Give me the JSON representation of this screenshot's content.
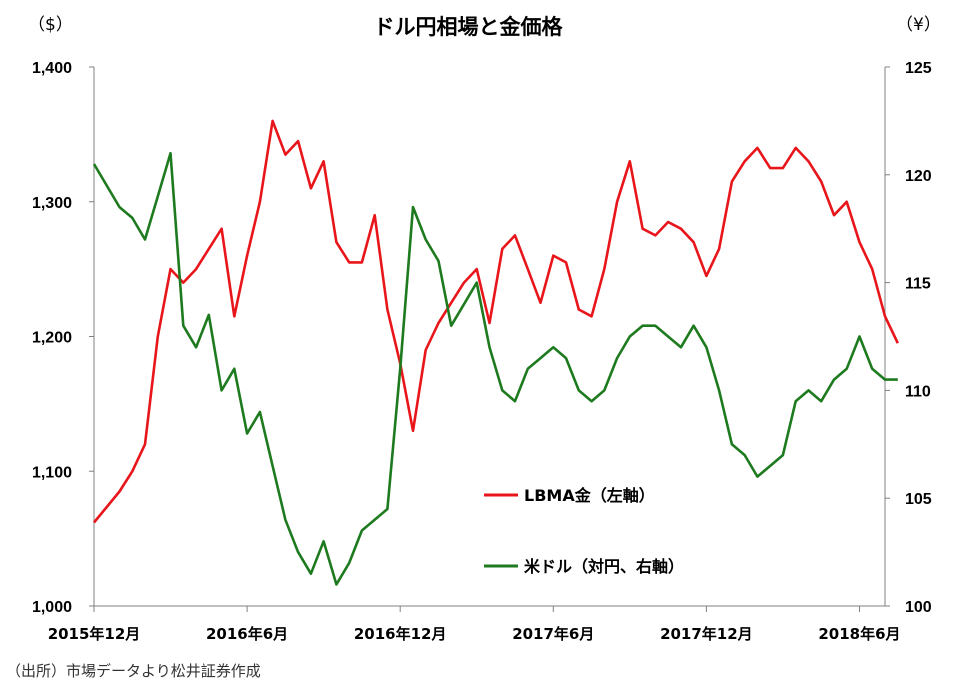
{
  "chart_data": {
    "type": "line",
    "title": "ドル円相場と金価格",
    "left_unit": "（$）",
    "right_unit": "（¥）",
    "source": "（出所）市場データより松井証券作成",
    "x_ticks": [
      "2015年12月",
      "2016年6月",
      "2016年12月",
      "2017年6月",
      "2017年12月",
      "2018年6月"
    ],
    "x_range": [
      "2015-12",
      "2018-07"
    ],
    "left_axis": {
      "min": 1000,
      "max": 1400,
      "ticks": [
        "1,000",
        "1,100",
        "1,200",
        "1,300",
        "1,400"
      ]
    },
    "right_axis": {
      "min": 100,
      "max": 125,
      "ticks": [
        "100",
        "105",
        "110",
        "115",
        "120",
        "125"
      ]
    },
    "grid": false,
    "series": [
      {
        "name": "LBMA金（左軸）",
        "axis": "left",
        "color": "#e8161b",
        "x": [
          "2015-12",
          "2016-01",
          "2016-01",
          "2016-02",
          "2016-02",
          "2016-03",
          "2016-03",
          "2016-04",
          "2016-04",
          "2016-05",
          "2016-05",
          "2016-06",
          "2016-06",
          "2016-07",
          "2016-07",
          "2016-08",
          "2016-08",
          "2016-09",
          "2016-09",
          "2016-10",
          "2016-10",
          "2016-11",
          "2016-11",
          "2016-12",
          "2016-12",
          "2017-01",
          "2017-01",
          "2017-02",
          "2017-02",
          "2017-03",
          "2017-03",
          "2017-04",
          "2017-04",
          "2017-05",
          "2017-05",
          "2017-06",
          "2017-06",
          "2017-07",
          "2017-07",
          "2017-08",
          "2017-08",
          "2017-09",
          "2017-09",
          "2017-10",
          "2017-10",
          "2017-11",
          "2017-11",
          "2017-12",
          "2017-12",
          "2018-01",
          "2018-01",
          "2018-02",
          "2018-02",
          "2018-03",
          "2018-03",
          "2018-04",
          "2018-04",
          "2018-05",
          "2018-05",
          "2018-06",
          "2018-06",
          "2018-07",
          "2018-07"
        ],
        "values": [
          1062,
          1085,
          1100,
          1120,
          1200,
          1250,
          1240,
          1250,
          1265,
          1280,
          1215,
          1260,
          1300,
          1360,
          1335,
          1345,
          1310,
          1330,
          1270,
          1255,
          1255,
          1290,
          1220,
          1180,
          1130,
          1190,
          1210,
          1225,
          1240,
          1250,
          1210,
          1265,
          1275,
          1250,
          1225,
          1260,
          1255,
          1220,
          1215,
          1250,
          1300,
          1330,
          1280,
          1275,
          1285,
          1280,
          1270,
          1245,
          1265,
          1315,
          1330,
          1340,
          1325,
          1325,
          1340,
          1330,
          1315,
          1290,
          1300,
          1270,
          1250,
          1215,
          1195
        ]
      },
      {
        "name": "米ドル（対円、右軸）",
        "axis": "right",
        "color": "#1e7a1e",
        "x": [
          "2015-12",
          "2016-01",
          "2016-01",
          "2016-02",
          "2016-02",
          "2016-03",
          "2016-03",
          "2016-04",
          "2016-04",
          "2016-05",
          "2016-05",
          "2016-06",
          "2016-06",
          "2016-07",
          "2016-07",
          "2016-08",
          "2016-08",
          "2016-09",
          "2016-09",
          "2016-10",
          "2016-10",
          "2016-11",
          "2016-11",
          "2016-12",
          "2016-12",
          "2017-01",
          "2017-01",
          "2017-02",
          "2017-02",
          "2017-03",
          "2017-03",
          "2017-04",
          "2017-04",
          "2017-05",
          "2017-05",
          "2017-06",
          "2017-06",
          "2017-07",
          "2017-07",
          "2017-08",
          "2017-08",
          "2017-09",
          "2017-09",
          "2017-10",
          "2017-10",
          "2017-11",
          "2017-11",
          "2017-12",
          "2017-12",
          "2018-01",
          "2018-01",
          "2018-02",
          "2018-02",
          "2018-03",
          "2018-03",
          "2018-04",
          "2018-04",
          "2018-05",
          "2018-05",
          "2018-06",
          "2018-06",
          "2018-07",
          "2018-07"
        ],
        "values": [
          120.5,
          118.5,
          118,
          117,
          119,
          121,
          113,
          112,
          113.5,
          110,
          111,
          108,
          109,
          106.5,
          104,
          102.5,
          101.5,
          103,
          101,
          102,
          103.5,
          104,
          104.5,
          111,
          118.5,
          117,
          116,
          113,
          114,
          115,
          112,
          110,
          109.5,
          111,
          111.5,
          112,
          111.5,
          110,
          109.5,
          110,
          111.5,
          112.5,
          113,
          113,
          112.5,
          112,
          113,
          112,
          110,
          107.5,
          107,
          106,
          106.5,
          107,
          109.5,
          110,
          109.5,
          110.5,
          111,
          112.5,
          111,
          110.5,
          110.5
        ]
      }
    ]
  }
}
